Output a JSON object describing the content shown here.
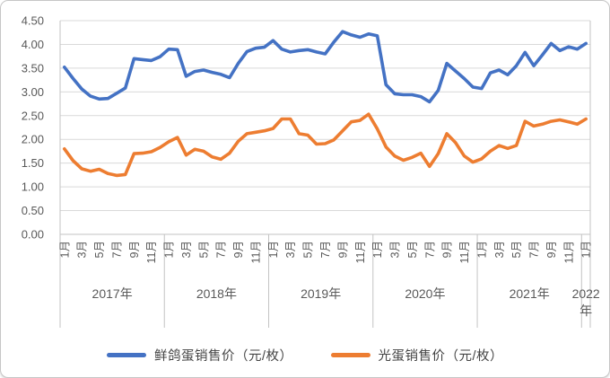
{
  "colors": {
    "series_blue": "#4472C4",
    "series_orange": "#ED7D31",
    "gridline": "#D9D9D9",
    "axis_line": "#C3C3C3",
    "tick_text": "#595959",
    "legend_text": "#444444",
    "background": "#FFFFFF"
  },
  "chart_data": {
    "type": "line",
    "title": "",
    "xlabel": "",
    "ylabel": "",
    "ylim": [
      0,
      4.5
    ],
    "ytick_step": 0.5,
    "grid": true,
    "legend_position": "bottom",
    "ytick_labels": [
      "0.00",
      "0.50",
      "1.00",
      "1.50",
      "2.00",
      "2.50",
      "3.00",
      "3.50",
      "4.00",
      "4.50"
    ],
    "x_axis": {
      "years": [
        {
          "label_lines": [
            "2017年"
          ],
          "n_months": 12,
          "month_ticks": [
            "1月",
            "3月",
            "5月",
            "7月",
            "9月",
            "11月"
          ]
        },
        {
          "label_lines": [
            "2018年"
          ],
          "n_months": 12,
          "month_ticks": [
            "1月",
            "3月",
            "5月",
            "7月",
            "9月",
            "11月"
          ]
        },
        {
          "label_lines": [
            "2019年"
          ],
          "n_months": 12,
          "month_ticks": [
            "1月",
            "3月",
            "5月",
            "7月",
            "9月",
            "11月"
          ]
        },
        {
          "label_lines": [
            "2020年"
          ],
          "n_months": 12,
          "month_ticks": [
            "1月",
            "3月",
            "5月",
            "7月",
            "9月",
            "11月"
          ]
        },
        {
          "label_lines": [
            "2021年"
          ],
          "n_months": 12,
          "month_ticks": [
            "1月",
            "3月",
            "5月",
            "7月",
            "9月",
            "11月"
          ]
        },
        {
          "label_lines": [
            "2022",
            "年"
          ],
          "n_months": 1,
          "month_ticks": [
            "1月"
          ]
        }
      ]
    },
    "series": [
      {
        "name": "鲜鸽蛋销售价（元/枚）",
        "color": "#4472C4",
        "values": [
          3.52,
          3.28,
          3.06,
          2.91,
          2.85,
          2.86,
          2.97,
          3.08,
          3.7,
          3.68,
          3.66,
          3.74,
          3.9,
          3.89,
          3.33,
          3.43,
          3.46,
          3.41,
          3.37,
          3.3,
          3.6,
          3.85,
          3.92,
          3.94,
          4.08,
          3.9,
          3.84,
          3.87,
          3.89,
          3.84,
          3.8,
          4.05,
          4.27,
          4.2,
          4.15,
          4.22,
          4.18,
          3.15,
          2.96,
          2.94,
          2.94,
          2.9,
          2.79,
          3.03,
          3.6,
          3.44,
          3.28,
          3.1,
          3.07,
          3.4,
          3.46,
          3.36,
          3.55,
          3.83,
          3.55,
          3.78,
          4.02,
          3.87,
          3.95,
          3.9,
          4.02
        ]
      },
      {
        "name": "光蛋销售价（元/枚）",
        "color": "#ED7D31",
        "values": [
          1.8,
          1.55,
          1.38,
          1.33,
          1.37,
          1.28,
          1.24,
          1.26,
          1.7,
          1.71,
          1.74,
          1.83,
          1.95,
          2.04,
          1.67,
          1.79,
          1.75,
          1.63,
          1.58,
          1.71,
          1.96,
          2.12,
          2.15,
          2.18,
          2.23,
          2.43,
          2.43,
          2.12,
          2.09,
          1.9,
          1.91,
          1.99,
          2.18,
          2.37,
          2.4,
          2.53,
          2.22,
          1.84,
          1.65,
          1.56,
          1.62,
          1.71,
          1.43,
          1.7,
          2.12,
          1.93,
          1.65,
          1.52,
          1.59,
          1.75,
          1.87,
          1.81,
          1.87,
          2.38,
          2.28,
          2.32,
          2.38,
          2.41,
          2.37,
          2.32,
          2.43
        ]
      }
    ]
  },
  "legend": {
    "items": [
      {
        "label": "鲜鸽蛋销售价（元/枚）"
      },
      {
        "label": "光蛋销售价（元/枚）"
      }
    ]
  }
}
